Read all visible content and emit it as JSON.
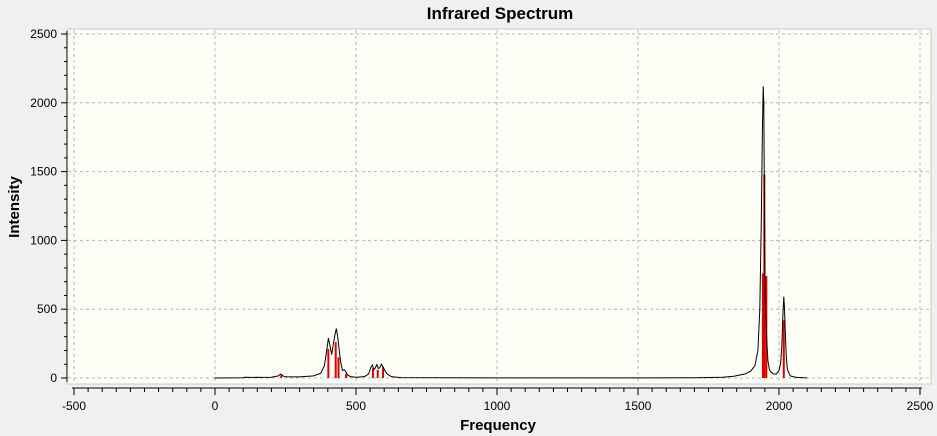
{
  "chart_data": {
    "type": "line",
    "title": "Infrared Spectrum",
    "xlabel": "Frequency",
    "ylabel": "Intensity",
    "xlim": [
      -500,
      2500
    ],
    "ylim": [
      0,
      2500
    ],
    "x_ticks": [
      -500,
      0,
      500,
      1000,
      1500,
      2000,
      2500
    ],
    "y_ticks": [
      0,
      500,
      1000,
      1500,
      2000,
      2500
    ],
    "x_tick_labels": [
      "-500",
      "0",
      "500",
      "1000",
      "1500",
      "2000",
      "2500"
    ],
    "y_tick_labels": [
      "0",
      "500",
      "1000",
      "1500",
      "2000",
      "2500"
    ],
    "grid": true,
    "colors": {
      "plot_background": "#fffff8",
      "spectrum_line": "#000000",
      "stick_lines": "#e00000",
      "grid": "#b4b4b4"
    },
    "sticks": [
      {
        "x": 110,
        "y": 4
      },
      {
        "x": 150,
        "y": 5
      },
      {
        "x": 235,
        "y": 20
      },
      {
        "x": 402,
        "y": 210
      },
      {
        "x": 428,
        "y": 260
      },
      {
        "x": 438,
        "y": 150
      },
      {
        "x": 465,
        "y": 30
      },
      {
        "x": 560,
        "y": 70
      },
      {
        "x": 577,
        "y": 60
      },
      {
        "x": 596,
        "y": 80
      },
      {
        "x": 1943,
        "y": 760
      },
      {
        "x": 1948,
        "y": 1480
      },
      {
        "x": 1955,
        "y": 740
      },
      {
        "x": 2017,
        "y": 420
      }
    ],
    "series": [
      {
        "x": [
          -2,
          100,
          105,
          112,
          120,
          140,
          150,
          160,
          200,
          225,
          232,
          236,
          242,
          255,
          300,
          350,
          375,
          388,
          396,
          402,
          408,
          414,
          420,
          425,
          430,
          435,
          440,
          446,
          452,
          458,
          464,
          470,
          480,
          500,
          530,
          545,
          552,
          558,
          563,
          568,
          574,
          579,
          584,
          590,
          596,
          602,
          610,
          625,
          660,
          1000,
          1500,
          1700,
          1800,
          1840,
          1880,
          1900,
          1915,
          1925,
          1932,
          1937,
          1941,
          1944,
          1946,
          1948,
          1951,
          1954,
          1957,
          1961,
          1966,
          1971,
          1980,
          1990,
          2000,
          2006,
          2010,
          2014,
          2017,
          2019,
          2022,
          2026,
          2030,
          2040,
          2060,
          2100
        ],
        "y": [
          0,
          2,
          5,
          6,
          4,
          4,
          6,
          4,
          5,
          15,
          28,
          25,
          14,
          8,
          8,
          15,
          35,
          90,
          200,
          290,
          230,
          170,
          250,
          310,
          360,
          300,
          210,
          110,
          55,
          60,
          45,
          22,
          10,
          6,
          10,
          30,
          75,
          95,
          60,
          72,
          98,
          70,
          75,
          100,
          80,
          55,
          30,
          10,
          3,
          1,
          1,
          2,
          5,
          12,
          30,
          50,
          90,
          200,
          500,
          1100,
          1800,
          2120,
          2000,
          1400,
          600,
          400,
          250,
          120,
          60,
          45,
          30,
          28,
          55,
          110,
          230,
          460,
          590,
          520,
          350,
          150,
          60,
          15,
          5,
          0
        ]
      }
    ]
  }
}
